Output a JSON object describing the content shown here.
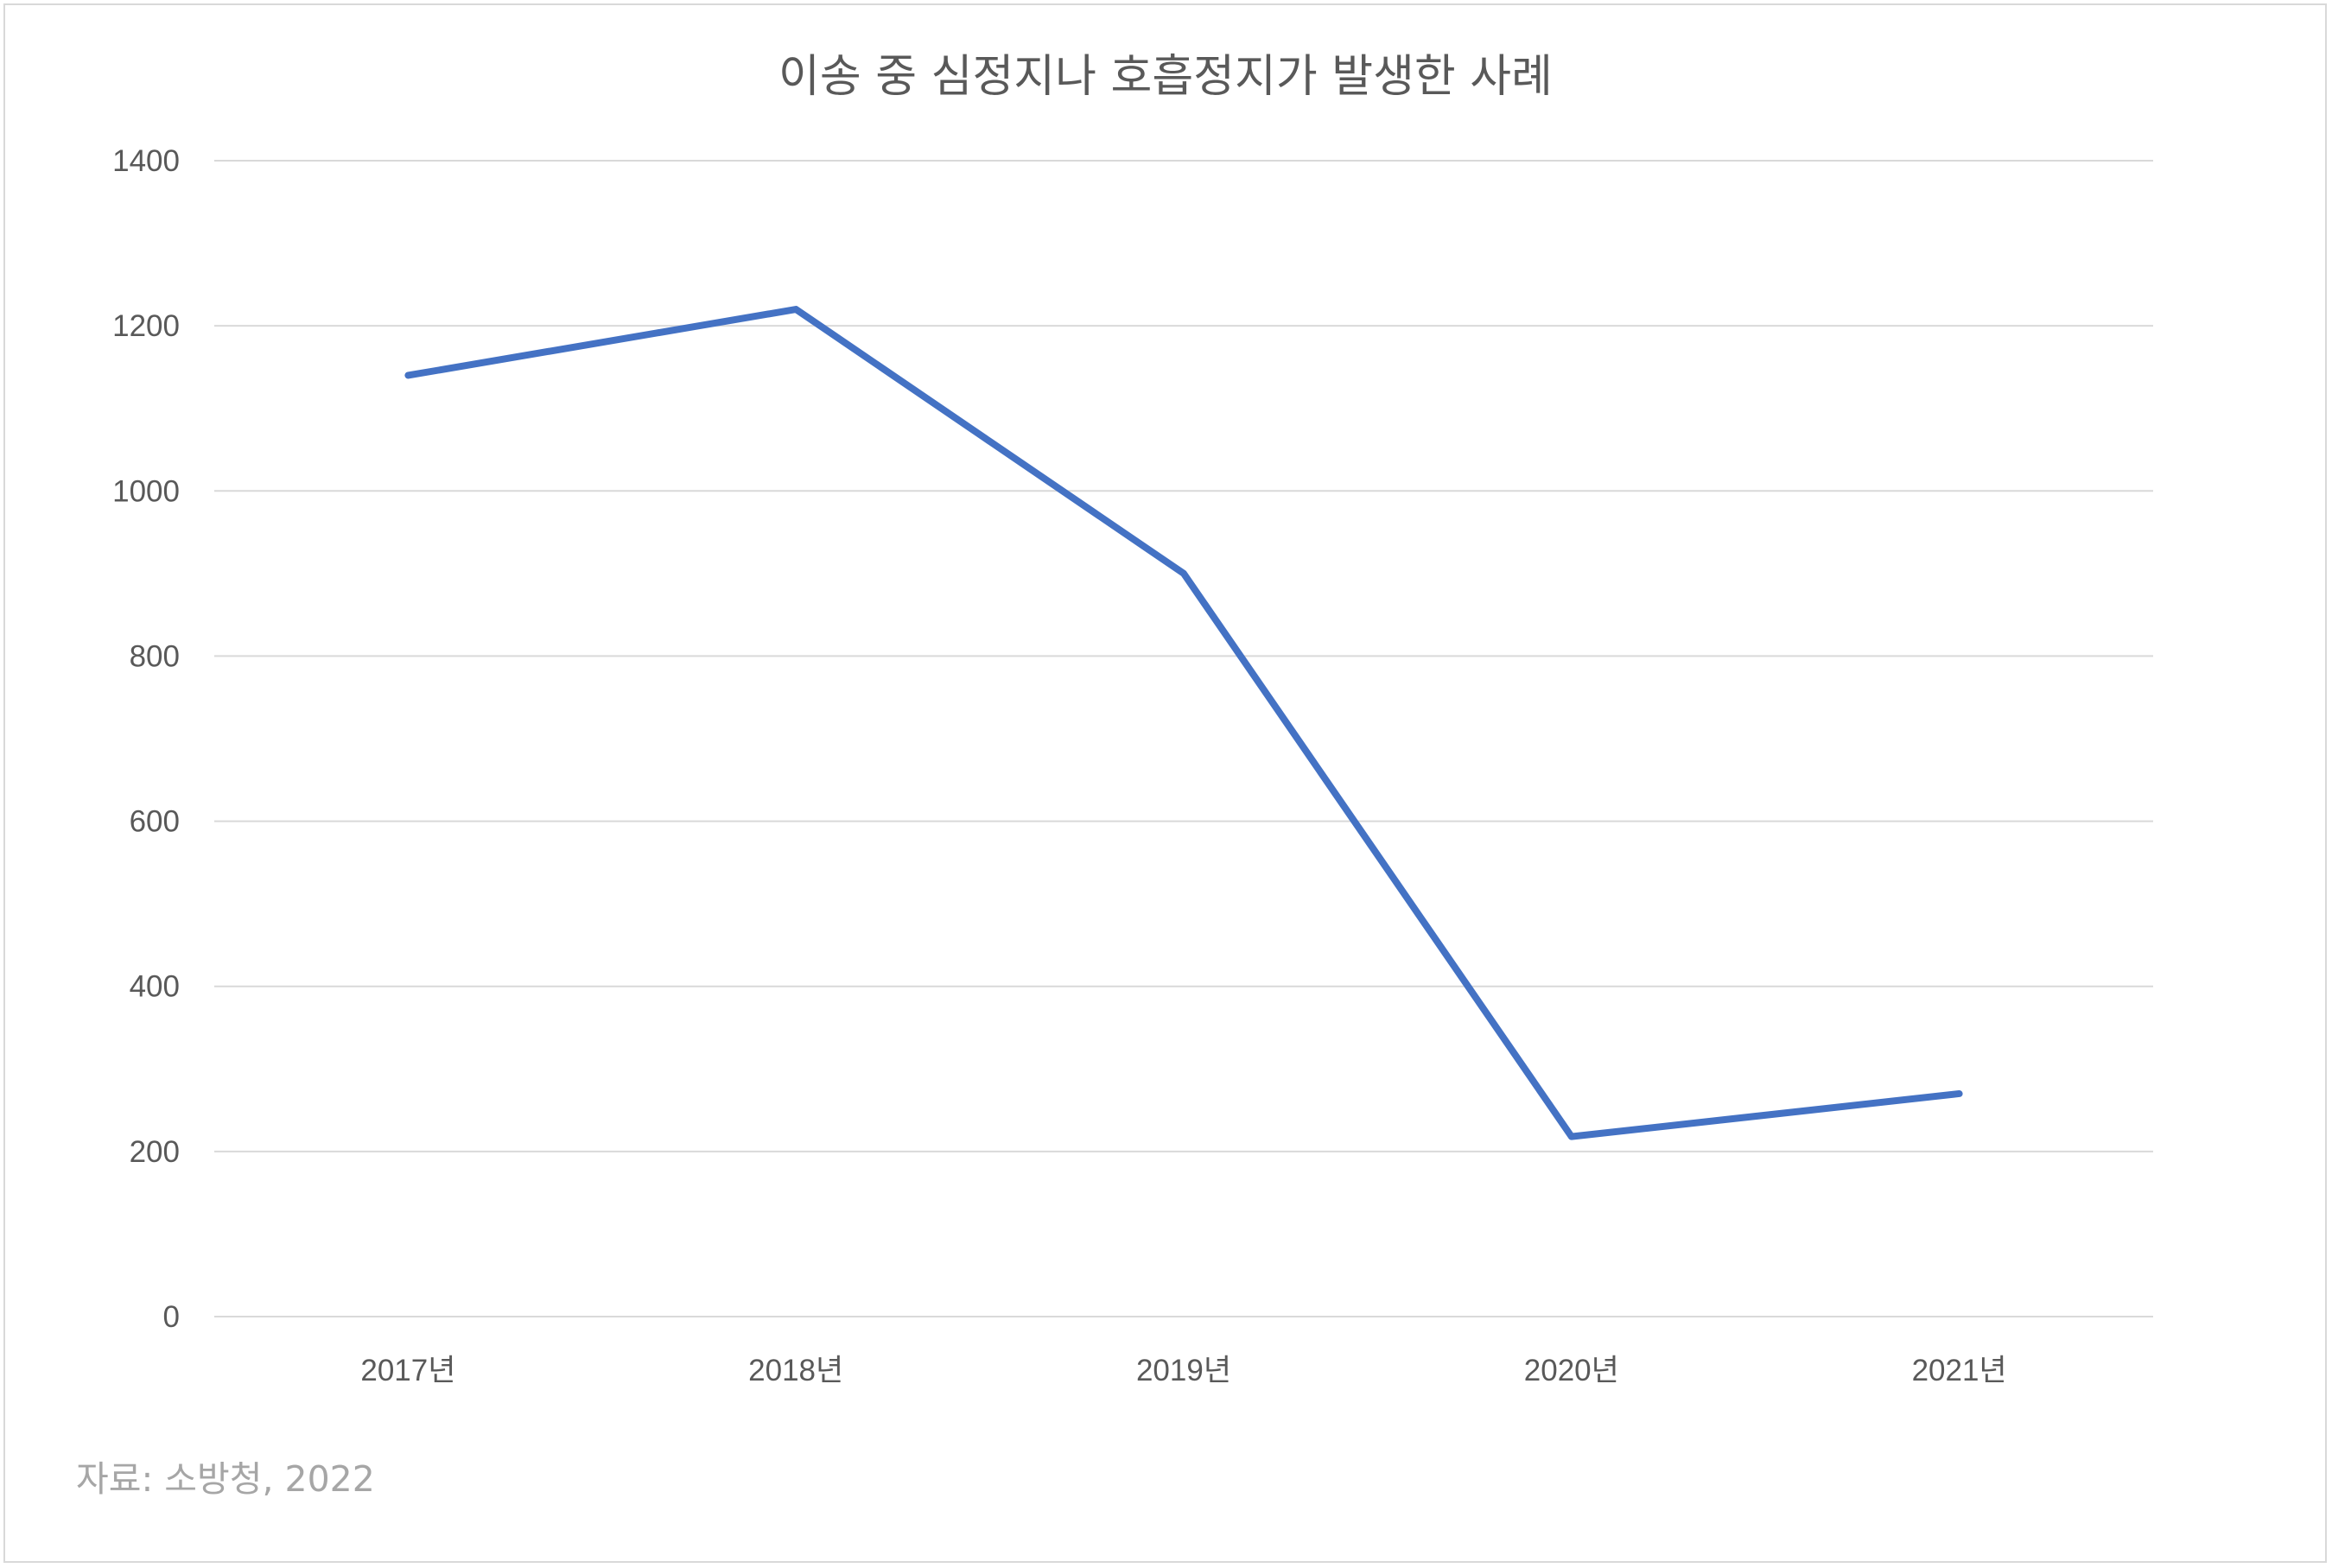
{
  "chart_data": {
    "type": "line",
    "title": "이송 중 심정지나 호흡정지가 발생한 사례",
    "categories": [
      "2017년",
      "2018년",
      "2019년",
      "2020년",
      "2021년"
    ],
    "series": [
      {
        "values": [
          1140,
          1220,
          900,
          218,
          270
        ],
        "color": "#4472c4"
      }
    ],
    "ylim": [
      0,
      1400
    ],
    "yticks": [
      0,
      200,
      400,
      600,
      800,
      1000,
      1200,
      1400
    ],
    "grid": true,
    "legend": "none",
    "source": "자료: 소방청, 2022"
  }
}
